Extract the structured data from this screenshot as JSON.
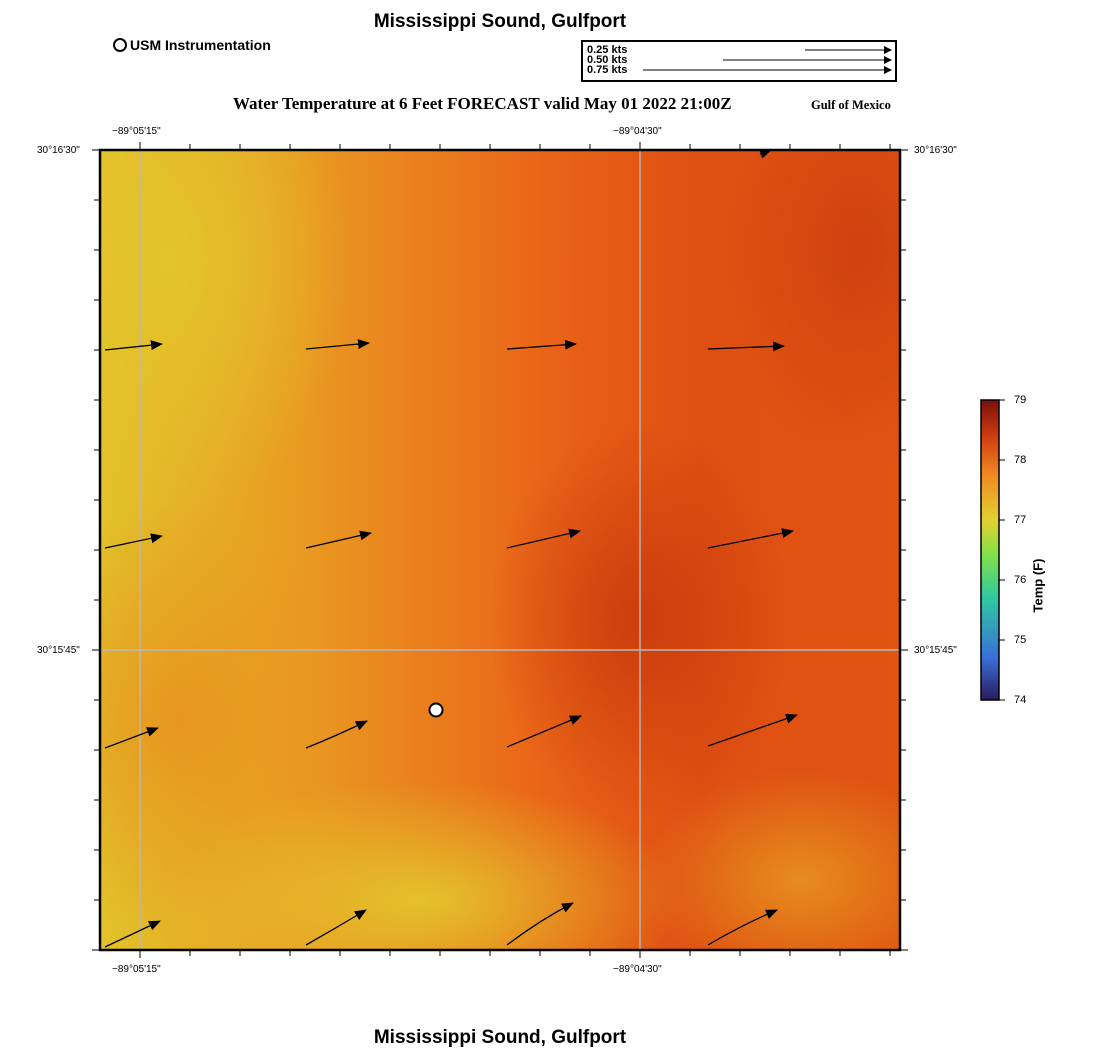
{
  "header": {
    "title": "Mississippi Sound, Gulfport",
    "forecast_title": "Water Temperature at 6 Feet FORECAST valid May 01 2022 21:00Z",
    "region_label": "Gulf of Mexico"
  },
  "footer": {
    "title": "Mississippi Sound, Gulfport"
  },
  "legend": {
    "station_label": "USM Instrumentation",
    "vector_scale": [
      "0.25 kts",
      "0.50 kts",
      "0.75 kts"
    ]
  },
  "map": {
    "lon_labels": [
      "−89°05'15\"",
      "−89°04'30\""
    ],
    "lat_labels": [
      "30°16'30\"",
      "30°15'45\""
    ],
    "station": {
      "name": "USM Instrumentation"
    }
  },
  "colorbar": {
    "title": "Temp (F)",
    "min": 74,
    "max": 79,
    "tick_labels": [
      "79",
      "78",
      "77",
      "76",
      "75",
      "74"
    ],
    "colors": [
      "#2a1a5e",
      "#3a6fd8",
      "#2ec9a0",
      "#7fe04a",
      "#e3d12e",
      "#f08a22",
      "#cf3b10",
      "#7a0f0a"
    ]
  }
}
